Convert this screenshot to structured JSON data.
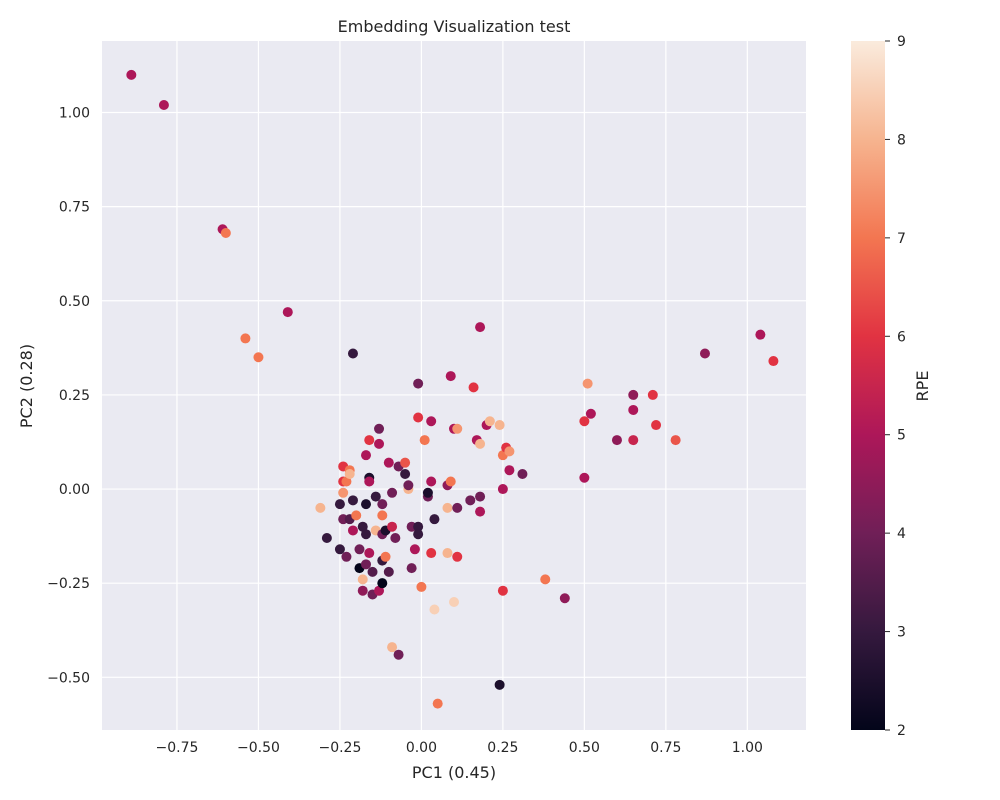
{
  "chart_data": {
    "type": "scatter",
    "title": "Embedding Visualization test",
    "xlabel": "PC1 (0.45)",
    "ylabel": "PC2 (0.28)",
    "xlim": [
      -0.98,
      1.18
    ],
    "ylim": [
      -0.64,
      1.19
    ],
    "xticks": [
      -0.75,
      -0.5,
      -0.25,
      0.0,
      0.25,
      0.5,
      0.75,
      1.0
    ],
    "xtick_labels": [
      "−0.75",
      "−0.50",
      "−0.25",
      "0.00",
      "0.25",
      "0.50",
      "0.75",
      "1.00"
    ],
    "yticks": [
      -0.5,
      -0.25,
      0.0,
      0.25,
      0.5,
      0.75,
      1.0
    ],
    "ytick_labels": [
      "−0.50",
      "−0.25",
      "0.00",
      "0.25",
      "0.50",
      "0.75",
      "1.00"
    ],
    "grid": true,
    "colorbar": {
      "label": "RPE",
      "min": 2,
      "max": 9,
      "ticks": [
        2,
        3,
        4,
        5,
        6,
        7,
        8,
        9
      ],
      "colormap": "rocket",
      "stops": [
        "#03051a",
        "#35193e",
        "#701f57",
        "#ad1759",
        "#e13342",
        "#f37651",
        "#f6b48f",
        "#faebdd"
      ]
    },
    "points": [
      {
        "x": -0.89,
        "y": 1.1,
        "c": 5.0
      },
      {
        "x": -0.79,
        "y": 1.02,
        "c": 5.0
      },
      {
        "x": -0.61,
        "y": 0.69,
        "c": 5.0
      },
      {
        "x": -0.6,
        "y": 0.68,
        "c": 7.0
      },
      {
        "x": -0.54,
        "y": 0.4,
        "c": 7.0
      },
      {
        "x": -0.5,
        "y": 0.35,
        "c": 7.0
      },
      {
        "x": -0.41,
        "y": 0.47,
        "c": 5.0
      },
      {
        "x": -0.21,
        "y": 0.36,
        "c": 3.0
      },
      {
        "x": -0.31,
        "y": -0.05,
        "c": 8.0
      },
      {
        "x": -0.29,
        "y": -0.13,
        "c": 3.0
      },
      {
        "x": -0.25,
        "y": -0.04,
        "c": 3.0
      },
      {
        "x": -0.25,
        "y": -0.16,
        "c": 3.0
      },
      {
        "x": -0.24,
        "y": 0.06,
        "c": 6.0
      },
      {
        "x": -0.24,
        "y": 0.02,
        "c": 6.0
      },
      {
        "x": -0.24,
        "y": -0.01,
        "c": 7.5
      },
      {
        "x": -0.24,
        "y": -0.08,
        "c": 4.0
      },
      {
        "x": -0.23,
        "y": -0.18,
        "c": 4.0
      },
      {
        "x": -0.23,
        "y": 0.02,
        "c": 7.0
      },
      {
        "x": -0.22,
        "y": 0.05,
        "c": 7.0
      },
      {
        "x": -0.22,
        "y": 0.04,
        "c": 8.0
      },
      {
        "x": -0.22,
        "y": -0.08,
        "c": 3.5
      },
      {
        "x": -0.21,
        "y": -0.11,
        "c": 5.0
      },
      {
        "x": -0.21,
        "y": -0.03,
        "c": 3.0
      },
      {
        "x": -0.2,
        "y": -0.07,
        "c": 7.0
      },
      {
        "x": -0.19,
        "y": -0.21,
        "c": 2.0
      },
      {
        "x": -0.19,
        "y": -0.16,
        "c": 4.0
      },
      {
        "x": -0.18,
        "y": -0.1,
        "c": 3.0
      },
      {
        "x": -0.18,
        "y": -0.24,
        "c": 8.0
      },
      {
        "x": -0.18,
        "y": -0.27,
        "c": 4.5
      },
      {
        "x": -0.17,
        "y": 0.09,
        "c": 5.0
      },
      {
        "x": -0.17,
        "y": -0.04,
        "c": 2.5
      },
      {
        "x": -0.17,
        "y": -0.12,
        "c": 3.0
      },
      {
        "x": -0.17,
        "y": -0.2,
        "c": 4.0
      },
      {
        "x": -0.16,
        "y": 0.13,
        "c": 6.0
      },
      {
        "x": -0.16,
        "y": 0.03,
        "c": 2.5
      },
      {
        "x": -0.16,
        "y": 0.02,
        "c": 5.0
      },
      {
        "x": -0.16,
        "y": -0.17,
        "c": 5.0
      },
      {
        "x": -0.15,
        "y": -0.28,
        "c": 4.0
      },
      {
        "x": -0.15,
        "y": -0.22,
        "c": 3.5
      },
      {
        "x": -0.14,
        "y": -0.02,
        "c": 3.0
      },
      {
        "x": -0.14,
        "y": -0.11,
        "c": 8.0
      },
      {
        "x": -0.13,
        "y": -0.27,
        "c": 5.0
      },
      {
        "x": -0.13,
        "y": 0.16,
        "c": 4.0
      },
      {
        "x": -0.13,
        "y": 0.12,
        "c": 5.0
      },
      {
        "x": -0.12,
        "y": -0.07,
        "c": 7.0
      },
      {
        "x": -0.12,
        "y": -0.12,
        "c": 4.0
      },
      {
        "x": -0.12,
        "y": -0.19,
        "c": 3.0
      },
      {
        "x": -0.12,
        "y": -0.25,
        "c": 2.0
      },
      {
        "x": -0.12,
        "y": -0.04,
        "c": 4.0
      },
      {
        "x": -0.11,
        "y": -0.11,
        "c": 2.5
      },
      {
        "x": -0.11,
        "y": -0.18,
        "c": 7.0
      },
      {
        "x": -0.1,
        "y": 0.07,
        "c": 5.0
      },
      {
        "x": -0.1,
        "y": -0.22,
        "c": 3.5
      },
      {
        "x": -0.09,
        "y": -0.1,
        "c": 5.5
      },
      {
        "x": -0.09,
        "y": -0.01,
        "c": 4.0
      },
      {
        "x": -0.09,
        "y": -0.42,
        "c": 8.0
      },
      {
        "x": -0.08,
        "y": -0.13,
        "c": 4.0
      },
      {
        "x": -0.07,
        "y": -0.44,
        "c": 4.0
      },
      {
        "x": -0.07,
        "y": 0.06,
        "c": 4.0
      },
      {
        "x": -0.05,
        "y": 0.04,
        "c": 3.0
      },
      {
        "x": -0.05,
        "y": 0.07,
        "c": 6.5
      },
      {
        "x": -0.04,
        "y": 0.0,
        "c": 8.0
      },
      {
        "x": -0.04,
        "y": 0.01,
        "c": 4.0
      },
      {
        "x": -0.03,
        "y": -0.1,
        "c": 4.0
      },
      {
        "x": -0.03,
        "y": -0.21,
        "c": 4.0
      },
      {
        "x": -0.02,
        "y": -0.16,
        "c": 5.0
      },
      {
        "x": -0.01,
        "y": 0.28,
        "c": 4.0
      },
      {
        "x": -0.01,
        "y": 0.19,
        "c": 6.0
      },
      {
        "x": -0.01,
        "y": -0.1,
        "c": 3.0
      },
      {
        "x": -0.01,
        "y": -0.12,
        "c": 3.0
      },
      {
        "x": 0.0,
        "y": -0.26,
        "c": 7.0
      },
      {
        "x": 0.01,
        "y": 0.13,
        "c": 7.0
      },
      {
        "x": 0.02,
        "y": -0.02,
        "c": 4.0
      },
      {
        "x": 0.02,
        "y": -0.01,
        "c": 2.5
      },
      {
        "x": 0.03,
        "y": 0.18,
        "c": 5.0
      },
      {
        "x": 0.03,
        "y": 0.02,
        "c": 5.0
      },
      {
        "x": 0.03,
        "y": -0.17,
        "c": 6.0
      },
      {
        "x": 0.04,
        "y": -0.08,
        "c": 3.0
      },
      {
        "x": 0.04,
        "y": -0.32,
        "c": 8.5
      },
      {
        "x": 0.05,
        "y": -0.57,
        "c": 7.0
      },
      {
        "x": 0.08,
        "y": 0.01,
        "c": 4.5
      },
      {
        "x": 0.08,
        "y": -0.05,
        "c": 8.0
      },
      {
        "x": 0.08,
        "y": -0.17,
        "c": 8.0
      },
      {
        "x": 0.09,
        "y": 0.3,
        "c": 5.0
      },
      {
        "x": 0.09,
        "y": 0.02,
        "c": 7.0
      },
      {
        "x": 0.1,
        "y": -0.3,
        "c": 8.5
      },
      {
        "x": 0.1,
        "y": 0.16,
        "c": 5.0
      },
      {
        "x": 0.11,
        "y": 0.16,
        "c": 7.5
      },
      {
        "x": 0.11,
        "y": -0.05,
        "c": 4.0
      },
      {
        "x": 0.11,
        "y": -0.18,
        "c": 6.0
      },
      {
        "x": 0.15,
        "y": -0.03,
        "c": 4.0
      },
      {
        "x": 0.16,
        "y": 0.27,
        "c": 6.0
      },
      {
        "x": 0.17,
        "y": 0.13,
        "c": 5.0
      },
      {
        "x": 0.18,
        "y": 0.12,
        "c": 8.0
      },
      {
        "x": 0.18,
        "y": 0.43,
        "c": 5.0
      },
      {
        "x": 0.18,
        "y": -0.02,
        "c": 4.0
      },
      {
        "x": 0.18,
        "y": -0.06,
        "c": 5.0
      },
      {
        "x": 0.2,
        "y": 0.17,
        "c": 5.0
      },
      {
        "x": 0.21,
        "y": 0.18,
        "c": 8.0
      },
      {
        "x": 0.24,
        "y": 0.17,
        "c": 8.0
      },
      {
        "x": 0.24,
        "y": -0.52,
        "c": 2.5
      },
      {
        "x": 0.25,
        "y": 0.09,
        "c": 7.0
      },
      {
        "x": 0.25,
        "y": 0.0,
        "c": 5.0
      },
      {
        "x": 0.25,
        "y": -0.27,
        "c": 6.0
      },
      {
        "x": 0.26,
        "y": 0.11,
        "c": 6.0
      },
      {
        "x": 0.27,
        "y": 0.1,
        "c": 7.5
      },
      {
        "x": 0.27,
        "y": 0.05,
        "c": 5.0
      },
      {
        "x": 0.31,
        "y": 0.04,
        "c": 4.0
      },
      {
        "x": 0.38,
        "y": -0.24,
        "c": 7.0
      },
      {
        "x": 0.44,
        "y": -0.29,
        "c": 4.5
      },
      {
        "x": 0.5,
        "y": 0.18,
        "c": 6.0
      },
      {
        "x": 0.5,
        "y": 0.03,
        "c": 5.0
      },
      {
        "x": 0.51,
        "y": 0.28,
        "c": 7.5
      },
      {
        "x": 0.52,
        "y": 0.2,
        "c": 5.0
      },
      {
        "x": 0.6,
        "y": 0.13,
        "c": 4.5
      },
      {
        "x": 0.65,
        "y": 0.25,
        "c": 4.5
      },
      {
        "x": 0.65,
        "y": 0.21,
        "c": 5.0
      },
      {
        "x": 0.65,
        "y": 0.13,
        "c": 5.5
      },
      {
        "x": 0.71,
        "y": 0.25,
        "c": 6.0
      },
      {
        "x": 0.72,
        "y": 0.17,
        "c": 6.0
      },
      {
        "x": 0.78,
        "y": 0.13,
        "c": 6.5
      },
      {
        "x": 0.87,
        "y": 0.36,
        "c": 4.5
      },
      {
        "x": 1.04,
        "y": 0.41,
        "c": 5.0
      },
      {
        "x": 1.08,
        "y": 0.34,
        "c": 6.0
      }
    ]
  }
}
